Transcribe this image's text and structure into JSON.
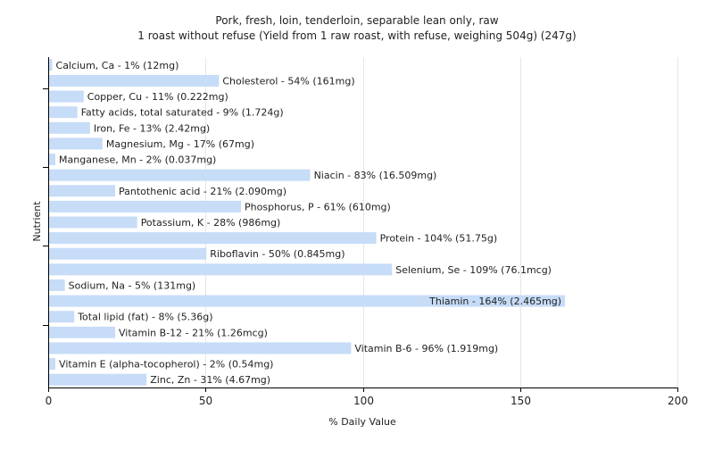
{
  "chart_data": {
    "type": "bar",
    "orientation": "horizontal",
    "title": "Pork, fresh, loin, tenderloin, separable lean only, raw",
    "subtitle": "1 roast without refuse (Yield from 1 raw roast, with refuse, weighing 504g) (247g)",
    "xlabel": "% Daily Value",
    "ylabel": "Nutrient",
    "xlim": [
      0,
      200
    ],
    "xticks": [
      0,
      50,
      100,
      150,
      200
    ],
    "grid": true,
    "bar_color": "#c6dcf7",
    "categories": [
      "Calcium, Ca",
      "Cholesterol",
      "Copper, Cu",
      "Fatty acids, total saturated",
      "Iron, Fe",
      "Magnesium, Mg",
      "Manganese, Mn",
      "Niacin",
      "Pantothenic acid",
      "Phosphorus, P",
      "Potassium, K",
      "Protein",
      "Riboflavin",
      "Selenium, Se",
      "Sodium, Na",
      "Thiamin",
      "Total lipid (fat)",
      "Vitamin B-12",
      "Vitamin B-6",
      "Vitamin E (alpha-tocopherol)",
      "Zinc, Zn"
    ],
    "values": [
      1,
      54,
      11,
      9,
      13,
      17,
      2,
      83,
      21,
      61,
      28,
      104,
      50,
      109,
      5,
      164,
      8,
      21,
      96,
      2,
      31
    ],
    "labels": [
      "Calcium, Ca - 1% (12mg)",
      "Cholesterol - 54% (161mg)",
      "Copper, Cu - 11% (0.222mg)",
      "Fatty acids, total saturated - 9% (1.724g)",
      "Iron, Fe - 13% (2.42mg)",
      "Magnesium, Mg - 17% (67mg)",
      "Manganese, Mn - 2% (0.037mg)",
      "Niacin - 83% (16.509mg)",
      "Pantothenic acid - 21% (2.090mg)",
      "Phosphorus, P - 61% (610mg)",
      "Potassium, K - 28% (986mg)",
      "Protein - 104% (51.75g)",
      "Riboflavin - 50% (0.845mg)",
      "Selenium, Se - 109% (76.1mcg)",
      "Sodium, Na - 5% (131mg)",
      "Thiamin - 164% (2.465mg)",
      "Total lipid (fat) - 8% (5.36g)",
      "Vitamin B-12 - 21% (1.26mcg)",
      "Vitamin B-6 - 96% (1.919mg)",
      "Vitamin E (alpha-tocopherol) - 2% (0.54mg)",
      "Zinc, Zn - 31% (4.67mg)"
    ]
  }
}
